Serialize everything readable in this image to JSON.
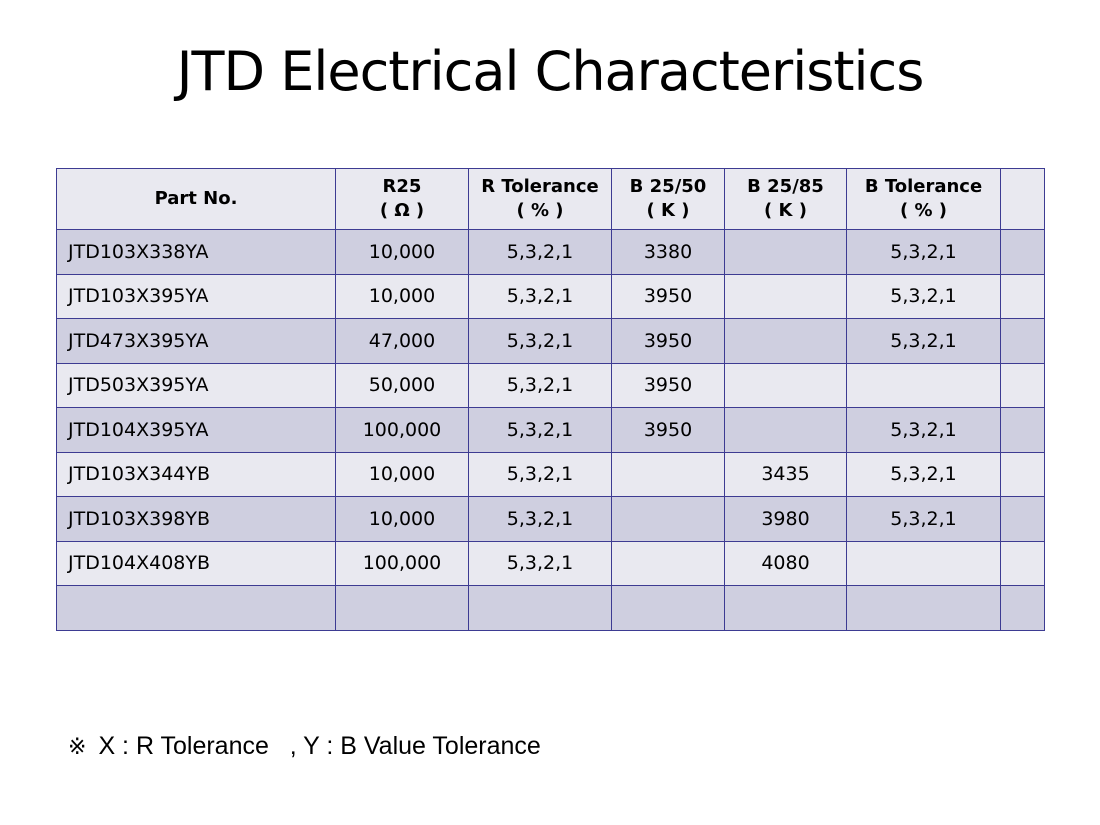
{
  "title": "JTD Electrical Characteristics",
  "table": {
    "headers": [
      {
        "line1": "Part No.",
        "line2": ""
      },
      {
        "line1": "R25",
        "line2": "( Ω )"
      },
      {
        "line1": "R Tolerance",
        "line2": "( % )"
      },
      {
        "line1": "B 25/50",
        "line2": "( K )"
      },
      {
        "line1": "B 25/85",
        "line2": "( K )"
      },
      {
        "line1": "B Tolerance",
        "line2": "( % )"
      },
      {
        "line1": "",
        "line2": ""
      }
    ],
    "rows": [
      [
        "JTD103X338YA",
        "10,000",
        "5,3,2,1",
        "3380",
        "",
        "5,3,2,1",
        ""
      ],
      [
        "JTD103X395YA",
        "10,000",
        "5,3,2,1",
        "3950",
        "",
        "5,3,2,1",
        ""
      ],
      [
        "JTD473X395YA",
        "47,000",
        "5,3,2,1",
        "3950",
        "",
        "5,3,2,1",
        ""
      ],
      [
        "JTD503X395YA",
        "50,000",
        "5,3,2,1",
        "3950",
        "",
        "",
        ""
      ],
      [
        "JTD104X395YA",
        "100,000",
        "5,3,2,1",
        "3950",
        "",
        "5,3,2,1",
        ""
      ],
      [
        "JTD103X344YB",
        "10,000",
        "5,3,2,1",
        "",
        "3435",
        "5,3,2,1",
        ""
      ],
      [
        "JTD103X398YB",
        "10,000",
        "5,3,2,1",
        "",
        "3980",
        "5,3,2,1",
        ""
      ],
      [
        "JTD104X408YB",
        "100,000",
        "5,3,2,1",
        "",
        "4080",
        "",
        ""
      ],
      [
        "",
        "",
        "",
        "",
        "",
        "",
        ""
      ]
    ]
  },
  "footnote": {
    "mark": "※",
    "text": "X : R Tolerance   , Y : B Value Tolerance"
  },
  "colors": {
    "border": "#3d3b92",
    "row_dark": "#cfcfe0",
    "row_light": "#e9e9f0"
  }
}
